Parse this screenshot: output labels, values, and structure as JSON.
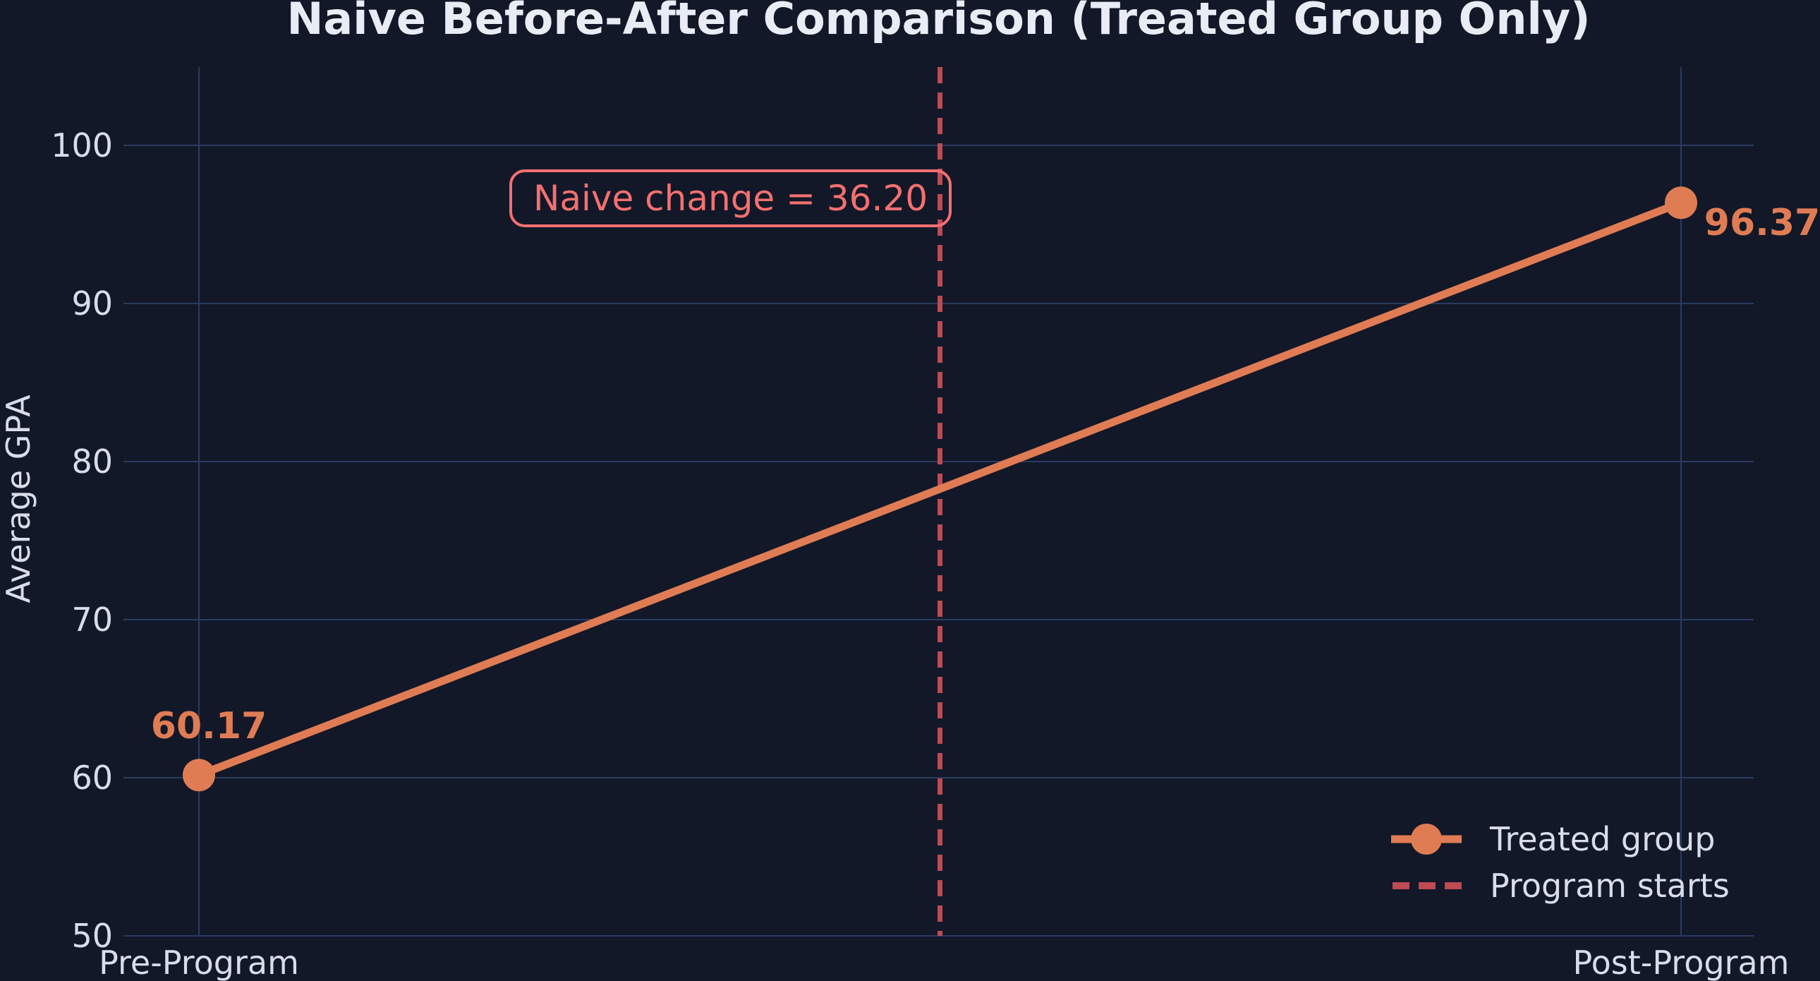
{
  "chart_data": {
    "type": "line",
    "title": "Naive Before-After Comparison (Treated Group Only)",
    "xlabel": "",
    "ylabel": "Average GPA",
    "categories": [
      "Pre-Program",
      "Post-Program"
    ],
    "series": [
      {
        "name": "Treated group",
        "values": [
          60.17,
          96.37
        ]
      }
    ],
    "point_labels": [
      "60.17",
      "96.37"
    ],
    "yticks": [
      50,
      60,
      70,
      80,
      90,
      100
    ],
    "ylim": [
      50,
      105
    ],
    "grid": true,
    "legend_position": "lower right",
    "annotation_text": "Naive change = 36.20",
    "vline": {
      "x": 0.5,
      "label": "Program starts"
    },
    "legend_entries": [
      "Treated group",
      "Program starts"
    ],
    "colors": {
      "background": "#121828",
      "grid": "#2B3A60",
      "line": "#E07C54",
      "vline": "#BE4A52",
      "annotation": "#F47070",
      "title_text": "#E9ECF5",
      "tick_text": "#D8DDE9"
    }
  }
}
